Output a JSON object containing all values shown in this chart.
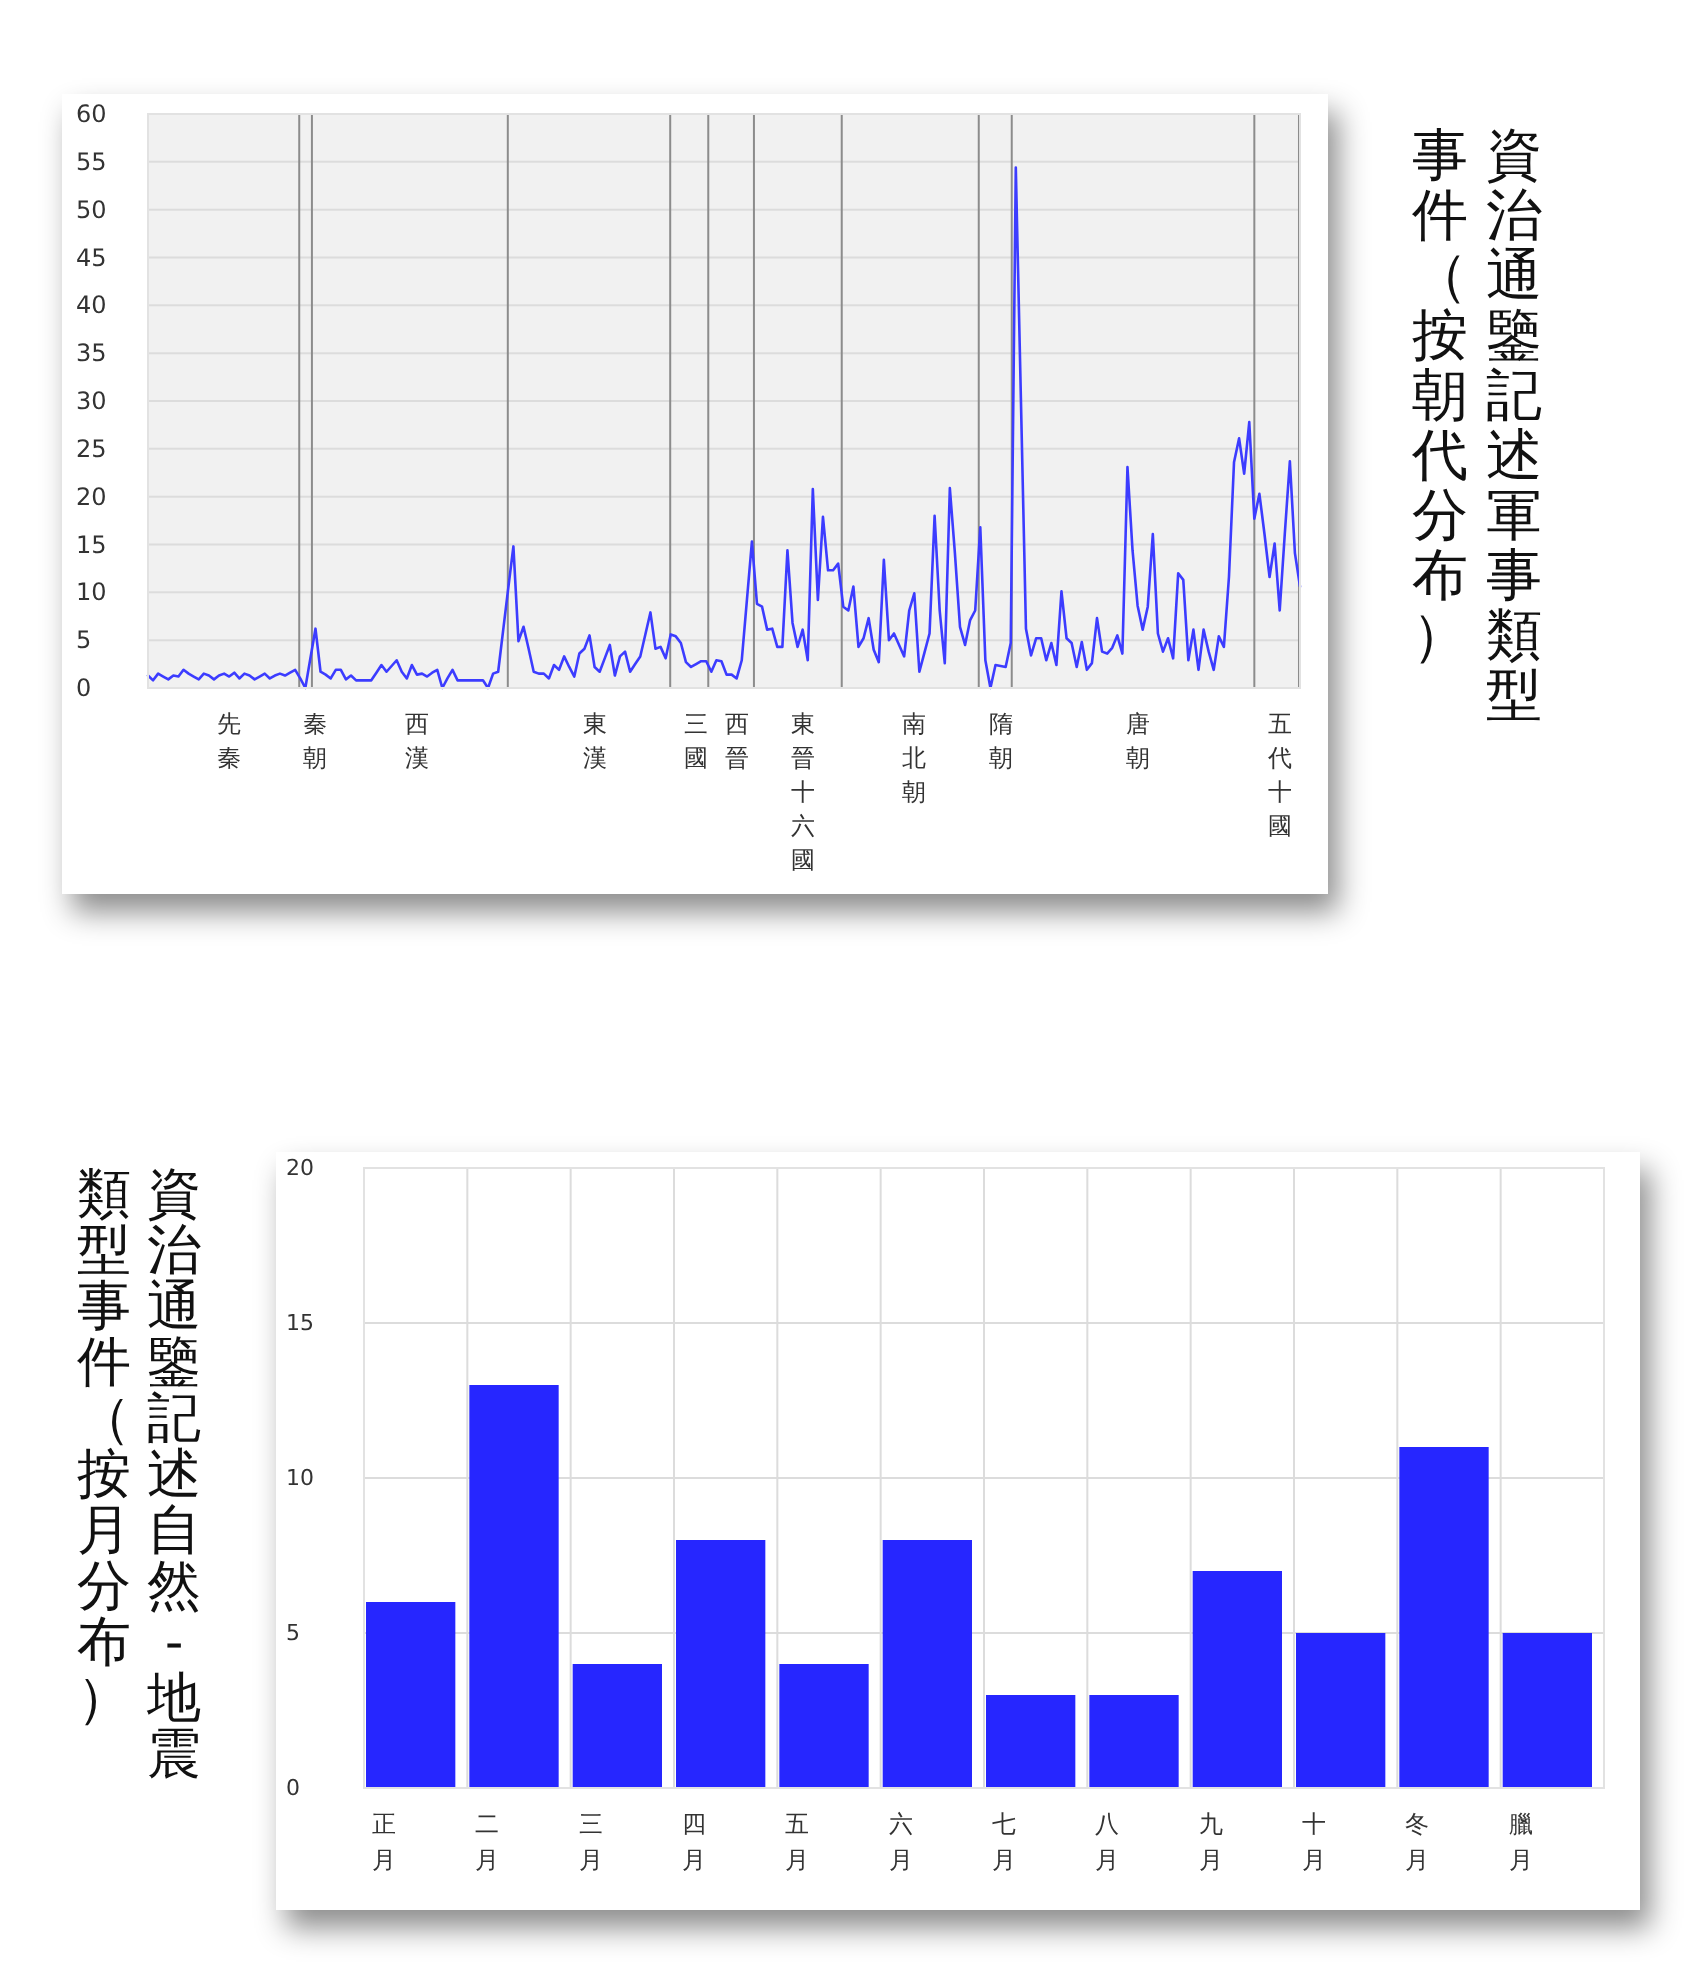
{
  "chart_data": [
    {
      "type": "line",
      "title": "資治通鑒記述軍事類型事件（按朝代分布）",
      "color": "#3c3cff",
      "ylim": [
        0,
        60
      ],
      "yticks": [
        0,
        5,
        10,
        15,
        20,
        25,
        30,
        35,
        40,
        45,
        50,
        55,
        60
      ],
      "grid": "y",
      "categories": [
        null,
        null,
        null,
        null,
        null,
        null,
        null,
        null,
        null,
        null,
        null,
        null,
        null,
        null,
        null,
        null,
        "先秦",
        null,
        null,
        null,
        null,
        null,
        null,
        null,
        null,
        null,
        null,
        null,
        null,
        null,
        null,
        null,
        null,
        "秦朝",
        null,
        null,
        null,
        null,
        null,
        null,
        null,
        null,
        null,
        null,
        null,
        null,
        null,
        null,
        null,
        null,
        null,
        null,
        null,
        "西漢",
        null,
        null,
        null,
        null,
        null,
        null,
        null,
        null,
        null,
        null,
        null,
        null,
        null,
        null,
        null,
        null,
        null,
        null,
        null,
        null,
        null,
        null,
        null,
        null,
        null,
        null,
        null,
        null,
        null,
        null,
        null,
        null,
        null,
        null,
        "東漢",
        null,
        null,
        null,
        null,
        null,
        null,
        null,
        null,
        null,
        null,
        null,
        null,
        null,
        null,
        null,
        null,
        null,
        null,
        null,
        "三國",
        null,
        null,
        null,
        null,
        null,
        null,
        null,
        "西晉",
        null,
        null,
        null,
        null,
        null,
        null,
        null,
        null,
        null,
        null,
        null,
        null,
        "東晉十六國",
        null,
        null,
        null,
        null,
        null,
        null,
        null,
        null,
        null,
        null,
        null,
        null,
        null,
        null,
        null,
        null,
        null,
        null,
        null,
        null,
        null,
        "南北朝",
        null,
        null,
        null,
        null,
        null,
        null,
        null,
        null,
        null,
        null,
        null,
        null,
        null,
        null,
        null,
        null,
        "隋朝",
        null,
        null,
        null,
        null,
        null,
        null,
        null,
        null,
        null,
        null,
        null,
        null,
        null,
        null,
        null,
        null,
        null,
        null,
        null,
        null,
        null,
        null,
        null,
        null,
        null,
        null,
        "唐朝",
        null,
        null,
        null,
        null,
        null,
        null,
        null,
        null,
        null,
        null,
        null,
        null,
        null,
        null,
        null,
        null,
        null,
        null,
        null,
        null,
        null,
        null,
        null,
        null,
        null,
        null,
        null,
        "五代十國",
        null,
        null,
        null,
        null
      ],
      "values": [
        1.3,
        0.8,
        1.5,
        1.2,
        0.9,
        1.3,
        1.2,
        1.9,
        1.5,
        1.2,
        0.9,
        1.5,
        1.3,
        0.9,
        1.3,
        1.5,
        1.2,
        1.6,
        1.0,
        1.5,
        1.3,
        0.9,
        1.2,
        1.5,
        1.0,
        1.3,
        1.5,
        1.3,
        1.6,
        1.9,
        1.0,
        0,
        3.1,
        6.2,
        1.7,
        1.4,
        1.0,
        1.9,
        1.9,
        0.9,
        1.3,
        0.8,
        0.8,
        0.8,
        0.8,
        1.6,
        2.4,
        1.7,
        2.3,
        2.9,
        1.7,
        1.0,
        2.4,
        1.4,
        1.5,
        1.2,
        1.6,
        1.9,
        0,
        1.0,
        1.9,
        0.8,
        0.8,
        0.8,
        0.8,
        0.8,
        0.8,
        0,
        1.5,
        1.7,
        6.1,
        10.5,
        14.8,
        4.9,
        6.4,
        4.1,
        1.7,
        1.5,
        1.5,
        1.0,
        2.4,
        1.9,
        3.3,
        2.2,
        1.2,
        3.6,
        4.1,
        5.5,
        2.2,
        1.7,
        3.1,
        4.5,
        1.3,
        3.3,
        3.8,
        1.7,
        2.5,
        3.3,
        5.6,
        7.9,
        4.1,
        4.3,
        3.1,
        5.6,
        5.4,
        4.7,
        2.7,
        2.2,
        2.5,
        2.8,
        2.8,
        1.7,
        2.9,
        2.8,
        1.4,
        1.4,
        1.0,
        2.9,
        9.1,
        15.3,
        8.8,
        8.5,
        6.1,
        6.2,
        4.3,
        4.3,
        14.4,
        6.8,
        4.3,
        6.1,
        2.9,
        20.8,
        9.2,
        17.9,
        12.3,
        12.3,
        13.0,
        8.5,
        8.1,
        10.6,
        4.3,
        5.2,
        7.3,
        4.0,
        2.7,
        13.4,
        5.0,
        5.7,
        4.5,
        3.3,
        8.1,
        9.9,
        1.7,
        3.7,
        5.7,
        18.0,
        8.1,
        2.6,
        20.9,
        14.1,
        6.4,
        4.5,
        7.1,
        8.1,
        16.8,
        2.9,
        0,
        2.4,
        2.3,
        2.2,
        4.7,
        54.4,
        30.3,
        6.2,
        3.4,
        5.2,
        5.2,
        2.9,
        4.7,
        2.4,
        10.1,
        5.2,
        4.7,
        2.2,
        4.8,
        1.9,
        2.6,
        7.3,
        3.8,
        3.6,
        4.2,
        5.5,
        3.6,
        23.1,
        14.4,
        8.6,
        6.1,
        8.5,
        16.1,
        5.7,
        3.8,
        5.2,
        3.1,
        12.0,
        11.3,
        2.9,
        6.1,
        1.9,
        6.1,
        3.8,
        1.9,
        5.4,
        4.3,
        11.6,
        23.6,
        26.1,
        22.4,
        27.8,
        17.7,
        20.3,
        16.1,
        11.6,
        15.1,
        8.1,
        16.1,
        23.7,
        14.1,
        10.6
      ]
    },
    {
      "type": "bar",
      "title": "資治通鑒記述自然-地震類型事件（按月分布）",
      "color": "#2626ff",
      "ylim": [
        0,
        20
      ],
      "yticks": [
        0,
        5,
        10,
        15,
        20
      ],
      "grid": true,
      "categories": [
        "正月",
        "二月",
        "三月",
        "四月",
        "五月",
        "六月",
        "七月",
        "八月",
        "九月",
        "十月",
        "冬月",
        "臘月"
      ],
      "values": [
        6,
        13,
        4,
        8,
        4,
        8,
        3,
        3,
        7,
        5,
        11,
        5
      ]
    }
  ]
}
